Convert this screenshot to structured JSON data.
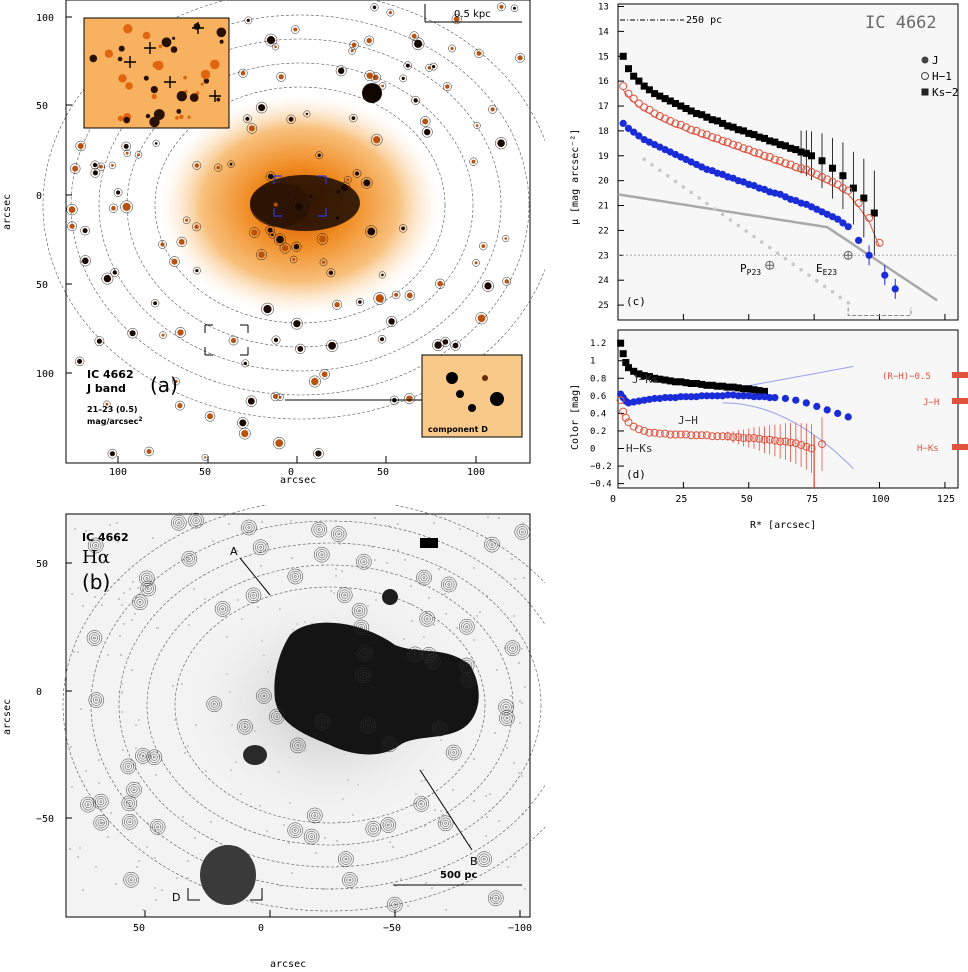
{
  "panel_a": {
    "galaxy": "IC 4662",
    "band": "J band",
    "contours": "21–23 (0.5)",
    "units": "mag/arcsec",
    "units_exp": "2",
    "panel_label": "(a)",
    "scale_label": "0.5 kpc",
    "inset_label": "component D",
    "xlabel": "arcsec",
    "ylabel": "arcsec",
    "xticks": [
      "100",
      "50",
      "0",
      "50",
      "100"
    ],
    "yticks": [
      "100",
      "50",
      "0",
      "50",
      "100"
    ]
  },
  "panel_b": {
    "galaxy": "IC 4662",
    "line": "Hα",
    "panel_label": "(b)",
    "marker_a": "A",
    "marker_b": "B",
    "marker_d": "D",
    "scale_label": "500 pc",
    "xlabel": "arcsec",
    "ylabel": "arcsec",
    "xticks": [
      "50",
      "0",
      "−50",
      "−100"
    ],
    "yticks": [
      "50",
      "0",
      "−50"
    ]
  },
  "panel_c": {
    "title": "IC 4662",
    "scale_label": "250 pc",
    "panel_label": "(c)",
    "ylabel": "μ [mag arcsec⁻²]",
    "legend": [
      "J",
      "H−1",
      "Ks−2"
    ],
    "annotations": [
      "P23",
      "E23"
    ],
    "yticks": [
      "13",
      "14",
      "15",
      "16",
      "17",
      "18",
      "19",
      "20",
      "21",
      "22",
      "23",
      "24",
      "25"
    ]
  },
  "panel_d": {
    "panel_label": "(d)",
    "ylabel": "Color [mag]",
    "xlabel": "R* [arcsec]",
    "xticks": [
      "0",
      "25",
      "50",
      "75",
      "100",
      "125"
    ],
    "yticks": [
      "1.2",
      "1",
      "0.8",
      "0.6",
      "0.4",
      "0.2",
      "0",
      "−0.2",
      "−0.4"
    ],
    "curve_labels": [
      "J−Ks",
      "J−H",
      "H−Ks"
    ],
    "side_labels": [
      "(R−H)−0.5",
      "J−H",
      "H−Ks"
    ]
  },
  "colors": {
    "red": "#e0533f",
    "blue": "#1a2bd8",
    "black": "#000000",
    "gray": "#a9a9a9",
    "lightblue": "#9aa0f0"
  },
  "chart_data": [
    {
      "type": "scatter",
      "title": "IC 4662",
      "xlabel": "R* [arcsec]",
      "ylabel": "μ [mag arcsec⁻²]",
      "xlim": [
        0,
        130
      ],
      "ylim": [
        25.6,
        12.9
      ],
      "series": [
        {
          "name": "J",
          "x": [
            2,
            4,
            6,
            8,
            10,
            12,
            14,
            16,
            18,
            20,
            22,
            24,
            26,
            28,
            30,
            32,
            34,
            36,
            38,
            40,
            42,
            44,
            46,
            48,
            50,
            52,
            54,
            56,
            58,
            60,
            62,
            64,
            66,
            68,
            70,
            72,
            74,
            76,
            78,
            80,
            82,
            84,
            86,
            88,
            92,
            96,
            102,
            106
          ],
          "y": [
            17.7,
            17.9,
            18.05,
            18.2,
            18.35,
            18.45,
            18.55,
            18.65,
            18.75,
            18.85,
            18.95,
            19.05,
            19.15,
            19.25,
            19.35,
            19.45,
            19.55,
            19.6,
            19.7,
            19.75,
            19.85,
            19.9,
            20.0,
            20.05,
            20.15,
            20.2,
            20.3,
            20.35,
            20.45,
            20.5,
            20.55,
            20.65,
            20.75,
            20.8,
            20.9,
            20.95,
            21.05,
            21.15,
            21.25,
            21.35,
            21.45,
            21.55,
            21.7,
            21.85,
            22.4,
            23.0,
            23.8,
            24.35
          ]
        },
        {
          "name": "H−1",
          "x": [
            2,
            4,
            6,
            8,
            10,
            12,
            14,
            16,
            18,
            20,
            22,
            24,
            26,
            28,
            30,
            32,
            34,
            36,
            38,
            40,
            42,
            44,
            46,
            48,
            50,
            52,
            54,
            56,
            58,
            60,
            62,
            64,
            66,
            68,
            70,
            72,
            74,
            76,
            78,
            80,
            82,
            84,
            86,
            88,
            92,
            96,
            100
          ],
          "y": [
            16.2,
            16.5,
            16.7,
            16.9,
            17.05,
            17.15,
            17.3,
            17.4,
            17.5,
            17.6,
            17.7,
            17.75,
            17.85,
            17.95,
            18.0,
            18.1,
            18.15,
            18.25,
            18.3,
            18.4,
            18.45,
            18.55,
            18.6,
            18.7,
            18.75,
            18.85,
            18.9,
            19.0,
            19.05,
            19.15,
            19.2,
            19.3,
            19.35,
            19.45,
            19.5,
            19.55,
            19.65,
            19.75,
            19.85,
            19.95,
            20.05,
            20.15,
            20.3,
            20.4,
            20.9,
            21.5,
            22.5
          ]
        },
        {
          "name": "Ks−2",
          "x": [
            2,
            4,
            6,
            8,
            10,
            12,
            14,
            16,
            18,
            20,
            22,
            24,
            26,
            28,
            30,
            32,
            34,
            36,
            38,
            40,
            42,
            44,
            46,
            48,
            50,
            52,
            54,
            56,
            58,
            60,
            62,
            64,
            66,
            68,
            70,
            72,
            74,
            78,
            82,
            86,
            90,
            94,
            98
          ],
          "y": [
            15.0,
            15.5,
            15.8,
            16.0,
            16.2,
            16.35,
            16.5,
            16.6,
            16.7,
            16.8,
            16.9,
            17.0,
            17.1,
            17.2,
            17.3,
            17.35,
            17.45,
            17.55,
            17.6,
            17.7,
            17.8,
            17.85,
            17.95,
            18.0,
            18.1,
            18.15,
            18.25,
            18.3,
            18.4,
            18.45,
            18.55,
            18.6,
            18.7,
            18.75,
            18.85,
            18.9,
            19.0,
            19.2,
            19.5,
            19.8,
            20.3,
            20.7,
            21.3
          ]
        }
      ],
      "annotations": [
        "P23",
        "E23"
      ],
      "legend": "top-right"
    },
    {
      "type": "scatter",
      "xlabel": "R* [arcsec]",
      "ylabel": "Color [mag]",
      "xlim": [
        0,
        130
      ],
      "ylim": [
        -0.45,
        1.35
      ],
      "series": [
        {
          "name": "J−Ks",
          "x": [
            1,
            2,
            3,
            4,
            6,
            8,
            10,
            12,
            14,
            16,
            18,
            20,
            22,
            24,
            26,
            28,
            30,
            32,
            34,
            36,
            38,
            40,
            42,
            44,
            46,
            48,
            50,
            52,
            54,
            56
          ],
          "y": [
            1.2,
            1.08,
            0.98,
            0.92,
            0.88,
            0.85,
            0.83,
            0.82,
            0.8,
            0.79,
            0.78,
            0.77,
            0.76,
            0.76,
            0.75,
            0.74,
            0.74,
            0.73,
            0.72,
            0.72,
            0.71,
            0.71,
            0.7,
            0.7,
            0.69,
            0.68,
            0.68,
            0.67,
            0.66,
            0.65
          ]
        },
        {
          "name": "J−H",
          "x": [
            1,
            2,
            3,
            4,
            6,
            8,
            10,
            12,
            14,
            16,
            18,
            20,
            22,
            24,
            26,
            28,
            30,
            32,
            34,
            36,
            38,
            40,
            42,
            44,
            46,
            48,
            50,
            52,
            54,
            56,
            58,
            60,
            64,
            68,
            72,
            76,
            80,
            84,
            88
          ],
          "y": [
            0.62,
            0.58,
            0.54,
            0.52,
            0.53,
            0.54,
            0.55,
            0.56,
            0.57,
            0.57,
            0.58,
            0.58,
            0.58,
            0.59,
            0.59,
            0.59,
            0.59,
            0.6,
            0.6,
            0.6,
            0.6,
            0.6,
            0.61,
            0.61,
            0.6,
            0.6,
            0.6,
            0.59,
            0.59,
            0.59,
            0.58,
            0.58,
            0.57,
            0.55,
            0.52,
            0.48,
            0.44,
            0.4,
            0.36
          ]
        },
        {
          "name": "H−Ks",
          "x": [
            1,
            2,
            3,
            4,
            6,
            8,
            10,
            12,
            14,
            16,
            18,
            20,
            22,
            24,
            26,
            28,
            30,
            32,
            34,
            36,
            38,
            40,
            42,
            44,
            46,
            48,
            50,
            52,
            54,
            56,
            58,
            60,
            62,
            64,
            66,
            68,
            70,
            72,
            74,
            78
          ],
          "y": [
            0.55,
            0.42,
            0.35,
            0.3,
            0.25,
            0.22,
            0.2,
            0.18,
            0.18,
            0.17,
            0.17,
            0.16,
            0.16,
            0.16,
            0.16,
            0.15,
            0.15,
            0.15,
            0.15,
            0.14,
            0.14,
            0.14,
            0.14,
            0.13,
            0.13,
            0.12,
            0.12,
            0.12,
            0.11,
            0.1,
            0.1,
            0.09,
            0.08,
            0.08,
            0.07,
            0.06,
            0.04,
            0.02,
            0.0,
            0.05
          ]
        }
      ],
      "side_labels": [
        "(R−H)−0.5",
        "J−H",
        "H−Ks"
      ]
    }
  ]
}
